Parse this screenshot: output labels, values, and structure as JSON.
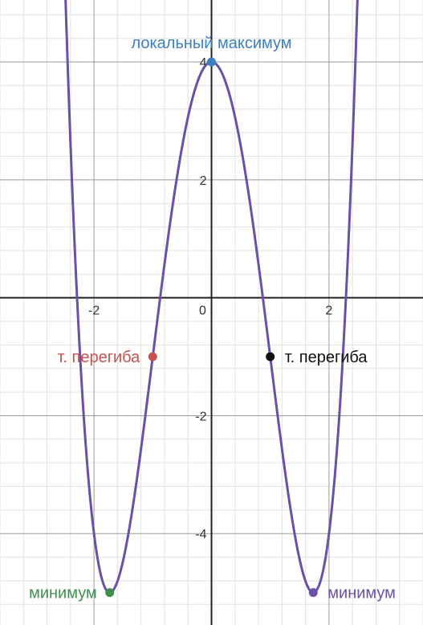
{
  "chart_data": {
    "type": "line",
    "title": "",
    "xlabel": "",
    "ylabel": "",
    "xlim": [
      -3.6,
      3.6
    ],
    "ylim": [
      -5.55,
      5.05
    ],
    "grid": true,
    "x_ticks": [
      {
        "value": -2,
        "label": "-2"
      },
      {
        "value": 0,
        "label": "0"
      },
      {
        "value": 2,
        "label": "2"
      }
    ],
    "y_ticks": [
      {
        "value": -4,
        "label": "-4"
      },
      {
        "value": -2,
        "label": "-2"
      },
      {
        "value": 2,
        "label": "2"
      },
      {
        "value": 4,
        "label": "4"
      }
    ],
    "series": [
      {
        "coefficients": {
          "a4": 1,
          "a2": -6,
          "a0": 4
        },
        "x_range": [
          -3.6,
          3.6
        ],
        "color": "#6b4fa8"
      }
    ],
    "points": [
      {
        "x": 0,
        "y": 4,
        "label": "локальный максимум",
        "color": "#3d7fbf",
        "label_anchor": "top"
      },
      {
        "x": -1,
        "y": -1,
        "label": "т. перегиба",
        "color": "#c8504d",
        "label_anchor": "left"
      },
      {
        "x": 1,
        "y": -1,
        "label": "т. перегиба",
        "color": "#111111",
        "label_anchor": "right"
      },
      {
        "x": -1.732,
        "y": -5,
        "label": "минимум",
        "color": "#3f8f4f",
        "label_anchor": "left"
      },
      {
        "x": 1.732,
        "y": -5,
        "label": "минимум",
        "color": "#6b4fa8",
        "label_anchor": "right"
      }
    ]
  }
}
